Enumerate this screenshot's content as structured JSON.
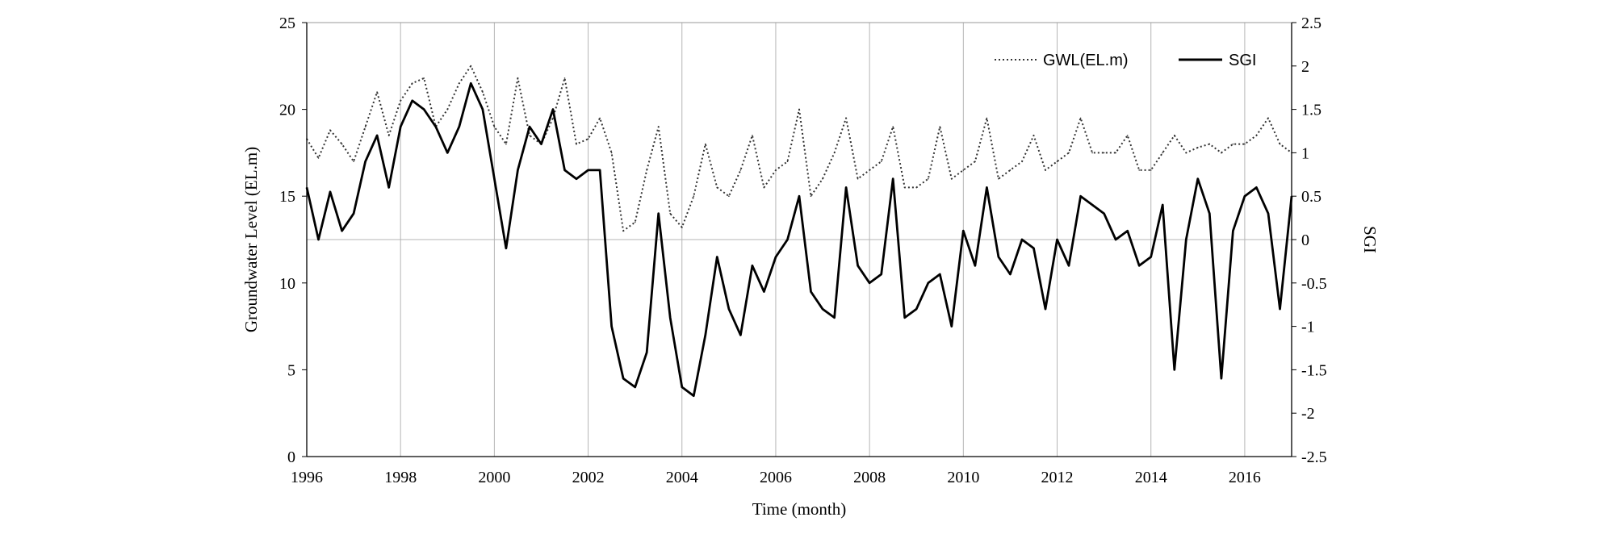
{
  "chart_data": {
    "type": "line",
    "title": "",
    "xlabel": "Time  (month)",
    "ylabel_left": "Groundwater  Level  (EL.m)",
    "ylabel_right": "SGI",
    "xlim": [
      1996,
      2017
    ],
    "ylim_left": [
      0,
      25
    ],
    "ylim_right": [
      -2.5,
      2.5
    ],
    "grid": true,
    "legend_position": "top-right",
    "x_ticks": [
      "1996",
      "1998",
      "2000",
      "2002",
      "2004",
      "2006",
      "2008",
      "2010",
      "2012",
      "2014",
      "2016"
    ],
    "x_tick_values": [
      1996,
      1998,
      2000,
      2002,
      2004,
      2006,
      2008,
      2010,
      2012,
      2014,
      2016
    ],
    "y_ticks_left": [
      "0",
      "5",
      "10",
      "15",
      "20",
      "25"
    ],
    "y_tick_values_left": [
      0,
      5,
      10,
      15,
      20,
      25
    ],
    "y_ticks_right": [
      "-2.5",
      "-2",
      "-1.5",
      "-1",
      "-0.5",
      "0",
      "0.5",
      "1",
      "1.5",
      "2",
      "2.5"
    ],
    "y_tick_values_right": [
      -2.5,
      -2,
      -1.5,
      -1,
      -0.5,
      0,
      0.5,
      1,
      1.5,
      2,
      2.5
    ],
    "series": [
      {
        "name": "GWL(EL.m)",
        "axis": "left",
        "style": "dotted",
        "color": "#333333",
        "x": [
          1996.0,
          1996.25,
          1996.5,
          1996.75,
          1997.0,
          1997.25,
          1997.5,
          1997.75,
          1998.0,
          1998.25,
          1998.5,
          1998.75,
          1999.0,
          1999.25,
          1999.5,
          1999.75,
          2000.0,
          2000.25,
          2000.5,
          2000.75,
          2001.0,
          2001.25,
          2001.5,
          2001.75,
          2002.0,
          2002.25,
          2002.5,
          2002.75,
          2003.0,
          2003.25,
          2003.5,
          2003.75,
          2004.0,
          2004.25,
          2004.5,
          2004.75,
          2005.0,
          2005.25,
          2005.5,
          2005.75,
          2006.0,
          2006.25,
          2006.5,
          2006.75,
          2007.0,
          2007.25,
          2007.5,
          2007.75,
          2008.0,
          2008.25,
          2008.5,
          2008.75,
          2009.0,
          2009.25,
          2009.5,
          2009.75,
          2010.0,
          2010.25,
          2010.5,
          2010.75,
          2011.0,
          2011.25,
          2011.5,
          2011.75,
          2012.0,
          2012.25,
          2012.5,
          2012.75,
          2013.0,
          2013.25,
          2013.5,
          2013.75,
          2014.0,
          2014.25,
          2014.5,
          2014.75,
          2015.0,
          2015.25,
          2015.5,
          2015.75,
          2016.0,
          2016.25,
          2016.5,
          2016.75,
          2017.0
        ],
        "values": [
          18.3,
          17.2,
          18.8,
          18.0,
          17.0,
          19.0,
          21.0,
          18.5,
          20.5,
          21.5,
          21.8,
          19.0,
          20.0,
          21.5,
          22.5,
          21.0,
          19.0,
          18.0,
          21.8,
          18.5,
          18.0,
          19.5,
          21.8,
          18.0,
          18.3,
          19.5,
          17.5,
          13.0,
          13.5,
          16.5,
          19.0,
          14.0,
          13.2,
          15.0,
          18.0,
          15.5,
          15.0,
          16.5,
          18.5,
          15.5,
          16.5,
          17.0,
          20.0,
          15.0,
          16.0,
          17.5,
          19.5,
          16.0,
          16.5,
          17.0,
          19.0,
          15.5,
          15.5,
          16.0,
          19.0,
          16.0,
          16.5,
          17.0,
          19.5,
          16.0,
          16.5,
          17.0,
          18.5,
          16.5,
          17.0,
          17.5,
          19.5,
          17.5,
          17.5,
          17.5,
          18.5,
          16.5,
          16.5,
          17.5,
          18.5,
          17.5,
          17.8,
          18.0,
          17.5,
          18.0,
          18.0,
          18.5,
          19.5,
          18.0,
          17.5
        ]
      },
      {
        "name": "SGI",
        "axis": "right",
        "style": "solid",
        "color": "#000000",
        "x": [
          1996.0,
          1996.25,
          1996.5,
          1996.75,
          1997.0,
          1997.25,
          1997.5,
          1997.75,
          1998.0,
          1998.25,
          1998.5,
          1998.75,
          1999.0,
          1999.25,
          1999.5,
          1999.75,
          2000.0,
          2000.25,
          2000.5,
          2000.75,
          2001.0,
          2001.25,
          2001.5,
          2001.75,
          2002.0,
          2002.25,
          2002.5,
          2002.75,
          2003.0,
          2003.25,
          2003.5,
          2003.75,
          2004.0,
          2004.25,
          2004.5,
          2004.75,
          2005.0,
          2005.25,
          2005.5,
          2005.75,
          2006.0,
          2006.25,
          2006.5,
          2006.75,
          2007.0,
          2007.25,
          2007.5,
          2007.75,
          2008.0,
          2008.25,
          2008.5,
          2008.75,
          2009.0,
          2009.25,
          2009.5,
          2009.75,
          2010.0,
          2010.25,
          2010.5,
          2010.75,
          2011.0,
          2011.25,
          2011.5,
          2011.75,
          2012.0,
          2012.25,
          2012.5,
          2012.75,
          2013.0,
          2013.25,
          2013.5,
          2013.75,
          2014.0,
          2014.25,
          2014.5,
          2014.75,
          2015.0,
          2015.25,
          2015.5,
          2015.75,
          2016.0,
          2016.25,
          2016.5,
          2016.75,
          2017.0
        ],
        "values": [
          0.6,
          0.0,
          0.55,
          0.1,
          0.3,
          0.9,
          1.2,
          0.6,
          1.3,
          1.6,
          1.5,
          1.3,
          1.0,
          1.3,
          1.8,
          1.5,
          0.7,
          -0.1,
          0.8,
          1.3,
          1.1,
          1.5,
          0.8,
          0.7,
          0.8,
          0.8,
          -1.0,
          -1.6,
          -1.7,
          -1.3,
          0.3,
          -0.9,
          -1.7,
          -1.8,
          -1.1,
          -0.2,
          -0.8,
          -1.1,
          -0.3,
          -0.6,
          -0.2,
          0.0,
          0.5,
          -0.6,
          -0.8,
          -0.9,
          0.6,
          -0.3,
          -0.5,
          -0.4,
          0.7,
          -0.9,
          -0.8,
          -0.5,
          -0.4,
          -1.0,
          0.1,
          -0.3,
          0.6,
          -0.2,
          -0.4,
          0.0,
          -0.1,
          -0.8,
          0.0,
          -0.3,
          0.5,
          0.4,
          0.3,
          0.0,
          0.1,
          -0.3,
          -0.2,
          0.4,
          -1.5,
          0.0,
          0.7,
          0.3,
          -1.6,
          0.1,
          0.5,
          0.6,
          0.3,
          -0.8,
          0.5
        ]
      }
    ]
  }
}
